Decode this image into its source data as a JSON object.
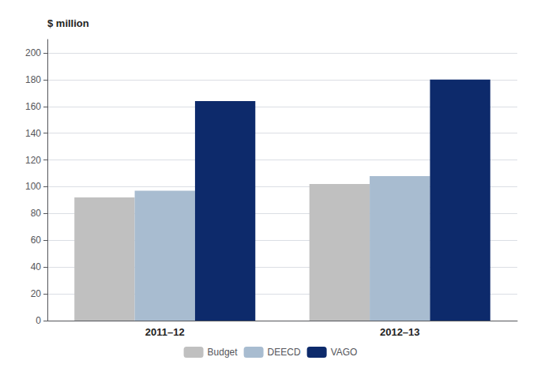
{
  "chart_data": {
    "type": "bar",
    "categories": [
      "2011–12",
      "2012–13"
    ],
    "series": [
      {
        "name": "Budget",
        "color": "#c0c0c0",
        "values": [
          92,
          102
        ]
      },
      {
        "name": "DEECD",
        "color": "#a8bcd0",
        "values": [
          97,
          108
        ]
      },
      {
        "name": "VAGO",
        "color": "#0d2a6b",
        "values": [
          164,
          180
        ]
      }
    ],
    "ylabel": "$ million",
    "ylim": [
      0,
      210
    ],
    "yticks": [
      0,
      20,
      40,
      60,
      80,
      100,
      120,
      140,
      160,
      180,
      200
    ],
    "grid": true,
    "legend": "bottom"
  }
}
